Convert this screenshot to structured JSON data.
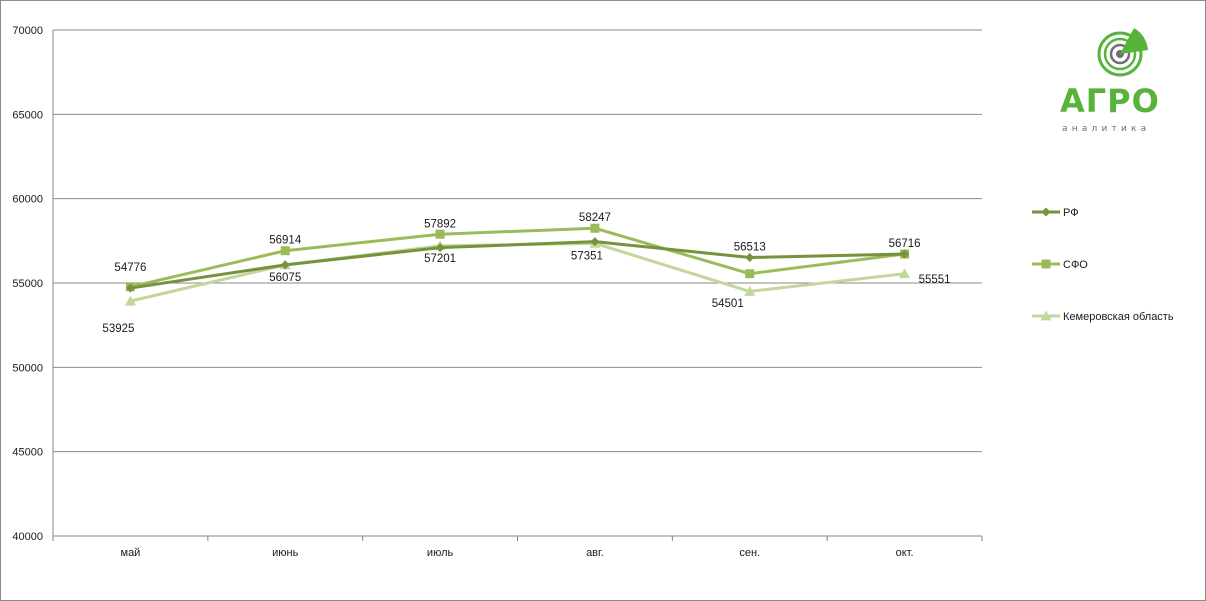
{
  "chart_data": {
    "type": "line",
    "categories": [
      "май",
      "июнь",
      "июль",
      "авг.",
      "сен.",
      "окт."
    ],
    "ylim": [
      40000,
      70000
    ],
    "yticks": [
      40000,
      45000,
      50000,
      55000,
      60000,
      65000,
      70000
    ],
    "grid": true,
    "legend_position": "right",
    "series": [
      {
        "name": "РФ",
        "marker": "diamond",
        "color": "#76923c",
        "values": [
          54700,
          56075,
          57100,
          57450,
          56513,
          56716
        ]
      },
      {
        "name": "СФО",
        "marker": "square",
        "color": "#9bbb59",
        "values": [
          54776,
          56914,
          57892,
          58247,
          55551,
          56716
        ]
      },
      {
        "name": "Кемеровская область",
        "marker": "triangle",
        "color": "#c3d69b",
        "values": [
          53925,
          56075,
          57201,
          57351,
          54501,
          55551
        ]
      }
    ],
    "data_labels": [
      {
        "text": "54776"
      },
      {
        "text": "53925"
      },
      {
        "text": "56914"
      },
      {
        "text": "56075"
      },
      {
        "text": "57892"
      },
      {
        "text": "57201"
      },
      {
        "text": "58247"
      },
      {
        "text": "57351"
      },
      {
        "text": "56513"
      },
      {
        "text": "54501"
      },
      {
        "text": "56716"
      },
      {
        "text": "55551"
      }
    ]
  },
  "logo": {
    "word": "АГРО",
    "sub": "аналитика",
    "colors": {
      "green": "#58b33a",
      "gray": "#6f6f6f"
    }
  }
}
